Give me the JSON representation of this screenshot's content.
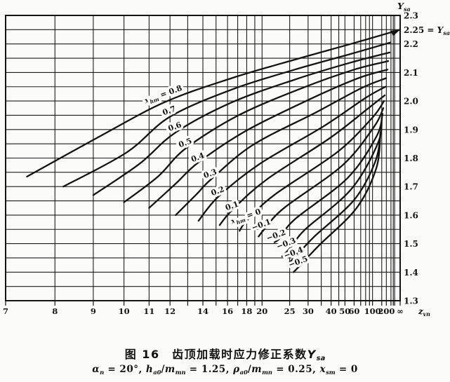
{
  "chart_data": {
    "type": "line",
    "title": "图 16 齿顶加载时应力修正系数 Y_sa",
    "conditions": "α_n = 20°, h_a0/m_mn = 1.25, ρ_a0/m_mn = 0.25, x_sm = 0",
    "x_axis": {
      "label": "z_vn",
      "label_segments": [
        {
          "t": "z",
          "i": true
        },
        {
          "s": "vn"
        }
      ],
      "scale": "reciprocal — position linear in 1/z, right edge = infinity",
      "min": 7,
      "max": "∞",
      "gridlines": [
        7,
        8,
        9,
        10,
        11,
        12,
        13,
        14,
        15,
        16,
        17,
        18,
        19,
        20,
        25,
        30,
        35,
        40,
        45,
        50,
        60,
        70,
        80,
        90,
        100,
        150,
        200,
        300,
        400,
        500
      ],
      "ticks": [
        {
          "z": 7,
          "label": "7"
        },
        {
          "z": 8,
          "label": "8"
        },
        {
          "z": 9,
          "label": "9"
        },
        {
          "z": 10,
          "label": "10"
        },
        {
          "z": 11,
          "label": "11"
        },
        {
          "z": 12,
          "label": "12"
        },
        {
          "z": 14,
          "label": "14"
        },
        {
          "z": 16,
          "label": "16"
        },
        {
          "z": 18,
          "label": "18"
        },
        {
          "z": 20,
          "label": "20"
        },
        {
          "z": 25,
          "label": "25"
        },
        {
          "z": 30,
          "label": "30"
        },
        {
          "z": 40,
          "label": "40"
        },
        {
          "z": 50,
          "label": "50"
        },
        {
          "z": 60,
          "label": "60"
        },
        {
          "z": 100,
          "label": "100"
        },
        {
          "z": 200,
          "label": "200"
        },
        {
          "z": null,
          "label": "∞"
        }
      ]
    },
    "y_axis": {
      "label": "Y_sa",
      "label_segments": [
        {
          "t": "Y",
          "i": true
        },
        {
          "s": "sa"
        }
      ],
      "min": 1.3,
      "max": 2.3,
      "grid_step": 0.05,
      "tick_step": 0.1,
      "tick_labels": [
        "2.3",
        "2.2",
        "2.1",
        "2.0",
        "1.9",
        "1.8",
        "1.7",
        "1.6",
        "1.5",
        "1.4",
        "1.3"
      ],
      "grid": true,
      "legend_position": "labels on curves"
    },
    "asymptote": {
      "value": 2.25,
      "label": "2.25 = Y_sa∞",
      "label_segments": [
        {
          "t": "2.25 = "
        },
        {
          "t": "Y",
          "i": true
        },
        {
          "s": "sa ∞"
        }
      ]
    },
    "series": [
      {
        "x_hm": 0.8,
        "label": "x_hm = 0.8",
        "label_segments": [
          {
            "t": "x",
            "i": true
          },
          {
            "s": "hm"
          },
          {
            "t": " = 0.8"
          }
        ],
        "label_at": [
          11.7,
          2.015
        ],
        "points": [
          [
            7.4,
            1.735
          ],
          [
            9.1,
            1.87
          ],
          [
            11.7,
            1.995
          ],
          [
            16.4,
            2.08
          ],
          [
            26.2,
            2.145
          ],
          [
            56,
            2.2
          ],
          [
            null,
            2.25
          ]
        ]
      },
      {
        "x_hm": 0.7,
        "label": "0.7",
        "label_segments": [
          {
            "t": "0.7"
          }
        ],
        "label_at": [
          12.0,
          1.958
        ],
        "points": [
          [
            8.2,
            1.7
          ],
          [
            10.1,
            1.82
          ],
          [
            12.0,
            1.945
          ],
          [
            16.4,
            2.04
          ],
          [
            26.2,
            2.11
          ],
          [
            56,
            2.165
          ],
          [
            280,
            2.205
          ]
        ]
      },
      {
        "x_hm": 0.6,
        "label": "0.6",
        "label_segments": [
          {
            "t": "0.6"
          }
        ],
        "label_at": [
          12.3,
          1.902
        ],
        "points": [
          [
            9.0,
            1.67
          ],
          [
            10.6,
            1.78
          ],
          [
            12.3,
            1.89
          ],
          [
            16.4,
            1.995
          ],
          [
            26.2,
            2.075
          ],
          [
            56,
            2.135
          ],
          [
            262,
            2.17
          ]
        ]
      },
      {
        "x_hm": 0.5,
        "label": "0.5",
        "label_segments": [
          {
            "t": "0.5"
          }
        ],
        "label_at": [
          12.9,
          1.845
        ],
        "points": [
          [
            10.0,
            1.645
          ],
          [
            11.4,
            1.735
          ],
          [
            12.9,
            1.835
          ],
          [
            17.1,
            1.95
          ],
          [
            28.1,
            2.045
          ],
          [
            60,
            2.11
          ],
          [
            231,
            2.14
          ]
        ]
      },
      {
        "x_hm": 0.4,
        "label": "0.4",
        "label_segments": [
          {
            "t": "0.4"
          }
        ],
        "label_at": [
          13.7,
          1.794
        ],
        "points": [
          [
            11.0,
            1.625
          ],
          [
            12.3,
            1.71
          ],
          [
            13.7,
            1.785
          ],
          [
            17.9,
            1.895
          ],
          [
            30.3,
            2.005
          ],
          [
            66,
            2.08
          ],
          [
            219,
            2.11
          ]
        ]
      },
      {
        "x_hm": 0.3,
        "label": "0.3",
        "label_segments": [
          {
            "t": "0.3"
          }
        ],
        "label_at": [
          14.6,
          1.737
        ],
        "points": [
          [
            12.3,
            1.6
          ],
          [
            13.6,
            1.675
          ],
          [
            14.6,
            1.725
          ],
          [
            18.7,
            1.845
          ],
          [
            32.8,
            1.96
          ],
          [
            71,
            2.045
          ],
          [
            197,
            2.08
          ]
        ]
      },
      {
        "x_hm": 0.2,
        "label": "0.2",
        "label_segments": [
          {
            "t": "0.2"
          }
        ],
        "label_at": [
          15.2,
          1.676
        ],
        "points": [
          [
            13.7,
            1.58
          ],
          [
            15.2,
            1.665
          ],
          [
            19.7,
            1.78
          ],
          [
            35.8,
            1.91
          ],
          [
            79,
            2.01
          ],
          [
            187,
            2.05
          ]
        ]
      },
      {
        "x_hm": 0.1,
        "label": "0.1",
        "label_segments": [
          {
            "t": "0.1"
          }
        ],
        "label_at": [
          16.5,
          1.624
        ],
        "points": [
          [
            15.3,
            1.565
          ],
          [
            16.5,
            1.62
          ],
          [
            20.7,
            1.725
          ],
          [
            39.3,
            1.87
          ],
          [
            87,
            1.975
          ],
          [
            179,
            2.02
          ]
        ]
      },
      {
        "x_hm": 0.0,
        "label": "x_hm = 0",
        "label_segments": [
          {
            "t": "x",
            "i": true
          },
          {
            "s": "hm"
          },
          {
            "t": " = 0"
          }
        ],
        "label_at": [
          18.0,
          1.587
        ],
        "points": [
          [
            17.2,
            1.545
          ],
          [
            18.0,
            1.58
          ],
          [
            21.9,
            1.67
          ],
          [
            43.7,
            1.82
          ],
          [
            98,
            1.94
          ],
          [
            171,
            2.0
          ]
        ]
      },
      {
        "x_hm": -0.1,
        "label": "-0.1",
        "label_segments": [
          {
            "t": "−0.1"
          }
        ],
        "label_at": [
          20.0,
          1.558
        ],
        "points": [
          [
            19.5,
            1.525
          ],
          [
            20.5,
            1.555
          ],
          [
            23.8,
            1.625
          ],
          [
            48,
            1.775
          ],
          [
            106,
            1.91
          ],
          [
            164,
            1.975
          ]
        ]
      },
      {
        "x_hm": -0.2,
        "label": "-0.2",
        "label_segments": [
          {
            "t": "−0.2"
          }
        ],
        "label_at": [
          22.4,
          1.521
        ],
        "points": [
          [
            22.0,
            1.505
          ],
          [
            23.0,
            1.52
          ],
          [
            26.2,
            1.585
          ],
          [
            52.5,
            1.73
          ],
          [
            116,
            1.875
          ],
          [
            157,
            1.955
          ]
        ]
      },
      {
        "x_hm": -0.3,
        "label": "-0.3",
        "label_segments": [
          {
            "t": "−0.3"
          }
        ],
        "label_at": [
          24.4,
          1.492
        ],
        "points": [
          [
            23.4,
            1.455
          ],
          [
            25.4,
            1.49
          ],
          [
            29.1,
            1.55
          ],
          [
            56.2,
            1.69
          ],
          [
            123,
            1.85
          ],
          [
            151,
            1.94
          ]
        ]
      },
      {
        "x_hm": -0.4,
        "label": "-0.4",
        "label_segments": [
          {
            "t": "−0.4"
          }
        ],
        "label_at": [
          26.1,
          1.46
        ],
        "points": [
          [
            24.7,
            1.43
          ],
          [
            27.1,
            1.465
          ],
          [
            32.2,
            1.525
          ],
          [
            60.5,
            1.655
          ],
          [
            112,
            1.79
          ],
          [
            146,
            1.905
          ]
        ]
      },
      {
        "x_hm": -0.5,
        "label": "-0.5",
        "label_segments": [
          {
            "t": "−0.5"
          }
        ],
        "label_at": [
          27.3,
          1.428
        ],
        "points": [
          [
            25.9,
            1.4
          ],
          [
            27.7,
            1.425
          ],
          [
            34.2,
            1.495
          ],
          [
            63.5,
            1.625
          ],
          [
            116,
            1.765
          ],
          [
            140,
            1.89
          ]
        ]
      }
    ]
  },
  "caption": {
    "line1_segments": [
      {
        "t": "图 16　齿顶加载时应力修正系数"
      },
      {
        "t": "Y",
        "i": true
      },
      {
        "s": "sa"
      }
    ],
    "line2_segments": [
      {
        "t": "α",
        "i": true
      },
      {
        "s": "n"
      },
      {
        "t": " = 20°,  "
      },
      {
        "t": "h",
        "i": true
      },
      {
        "s": "a0"
      },
      {
        "t": "/"
      },
      {
        "t": "m",
        "i": true
      },
      {
        "s": "mn"
      },
      {
        "t": " = 1.25,  "
      },
      {
        "t": "ρ",
        "i": true
      },
      {
        "s": "a0"
      },
      {
        "t": "/"
      },
      {
        "t": "m",
        "i": true
      },
      {
        "s": "mn"
      },
      {
        "t": " = 0.25,  "
      },
      {
        "t": "x",
        "i": true
      },
      {
        "s": "sm"
      },
      {
        "t": " = 0"
      }
    ]
  },
  "colors": {
    "ink": "#141414",
    "grid": "#1c1c1c",
    "paper": "#fbfbf9"
  }
}
